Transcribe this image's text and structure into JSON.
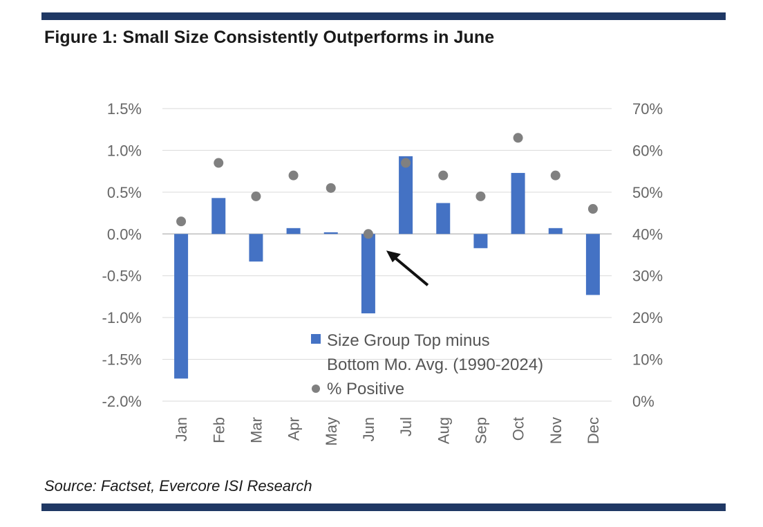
{
  "title": "Figure 1: Small Size Consistently Outperforms in June",
  "source": "Source: Factset, Evercore ISI Research",
  "colors": {
    "bar": "#4472c4",
    "dot": "#808080",
    "rule": "#1f3864",
    "grid": "#d9d9d9"
  },
  "chart_data": {
    "type": "bar",
    "categories": [
      "Jan",
      "Feb",
      "Mar",
      "Apr",
      "May",
      "Jun",
      "Jul",
      "Aug",
      "Sep",
      "Oct",
      "Nov",
      "Dec"
    ],
    "series": [
      {
        "name": "Size Group Top minus Bottom Mo. Avg. (1990-2024)",
        "type": "bar",
        "axis": "left",
        "values": [
          -1.73,
          0.43,
          -0.33,
          0.07,
          0.02,
          -0.95,
          0.93,
          0.37,
          -0.17,
          0.73,
          0.07,
          -0.73
        ]
      },
      {
        "name": "% Positive",
        "type": "scatter",
        "axis": "right",
        "values": [
          43,
          57,
          49,
          54,
          51,
          40,
          57,
          54,
          49,
          63,
          54,
          46
        ]
      }
    ],
    "y_left": {
      "min": -2.0,
      "max": 1.5,
      "step": 0.5,
      "tick_labels": [
        "-2.0%",
        "-1.5%",
        "-1.0%",
        "-0.5%",
        "0.0%",
        "0.5%",
        "1.0%",
        "1.5%"
      ]
    },
    "y_right": {
      "min": 0,
      "max": 70,
      "step": 10,
      "tick_labels": [
        "0%",
        "10%",
        "20%",
        "30%",
        "40%",
        "50%",
        "60%",
        "70%"
      ]
    },
    "grid": true,
    "legend": {
      "position": "bottom-right-inside",
      "bar_lines": [
        "Size Group Top minus",
        "Bottom Mo. Avg. (1990-2024)"
      ],
      "dot_label": "% Positive"
    },
    "annotation": {
      "type": "arrow",
      "target_category": "Jun"
    }
  }
}
